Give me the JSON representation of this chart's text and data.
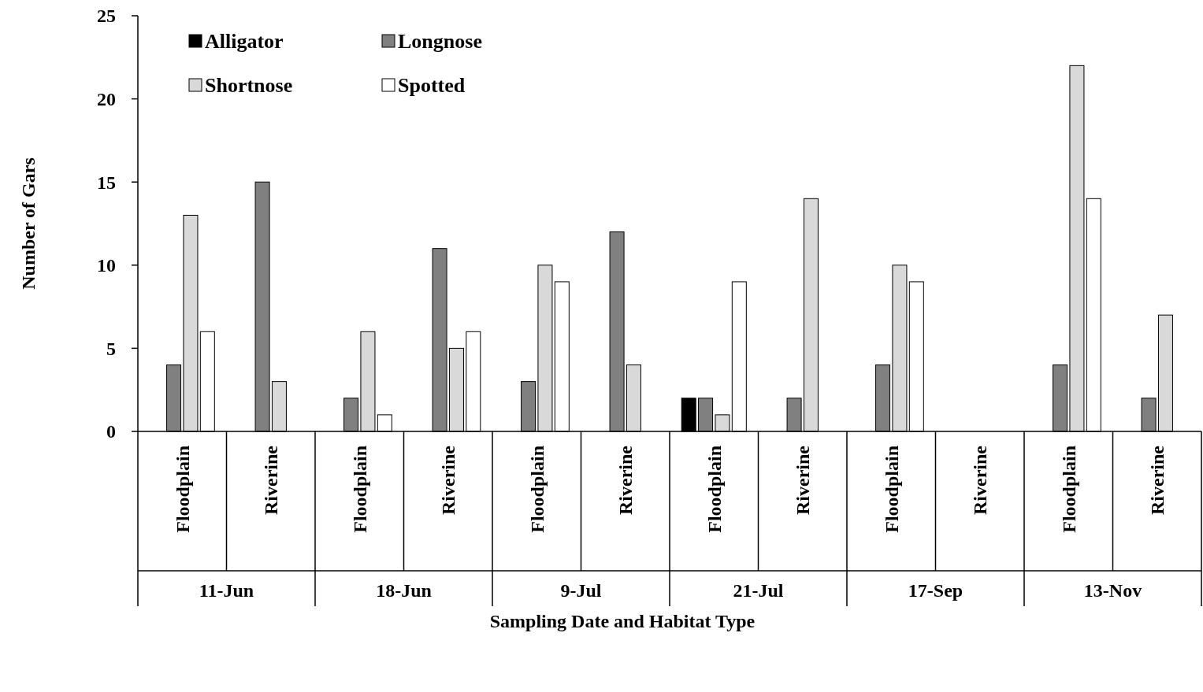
{
  "chart_data": {
    "type": "bar",
    "xlabel": "Sampling Date and Habitat Type",
    "ylabel": "Number of Gars",
    "categories": [
      "Floodplain",
      "Riverine",
      "Floodplain",
      "Riverine",
      "Floodplain",
      "Riverine",
      "Floodplain",
      "Riverine",
      "Floodplain",
      "Riverine",
      "Floodplain",
      "Riverine"
    ],
    "annotations": [
      "11-Jun",
      "18-Jun",
      "9-Jul",
      "21-Jul",
      "17-Sep",
      "13-Nov"
    ],
    "series": [
      {
        "name": "Alligator",
        "color": "#000000",
        "values": [
          0,
          0,
          0,
          0,
          0,
          0,
          2,
          0,
          0,
          0,
          0,
          0
        ]
      },
      {
        "name": "Longnose",
        "color": "#808080",
        "values": [
          4,
          15,
          2,
          11,
          3,
          12,
          2,
          2,
          4,
          0,
          4,
          2
        ]
      },
      {
        "name": "Shortnose",
        "color": "#d9d9d9",
        "values": [
          13,
          3,
          6,
          5,
          10,
          4,
          1,
          14,
          10,
          0,
          22,
          7
        ]
      },
      {
        "name": "Spotted",
        "color": "#ffffff",
        "values": [
          6,
          0,
          1,
          6,
          9,
          0,
          9,
          0,
          9,
          0,
          14,
          0
        ]
      }
    ],
    "ylim": [
      0,
      25
    ],
    "yticks": [
      0,
      5,
      10,
      15,
      20,
      25
    ],
    "grid": false,
    "legend": "top left"
  }
}
